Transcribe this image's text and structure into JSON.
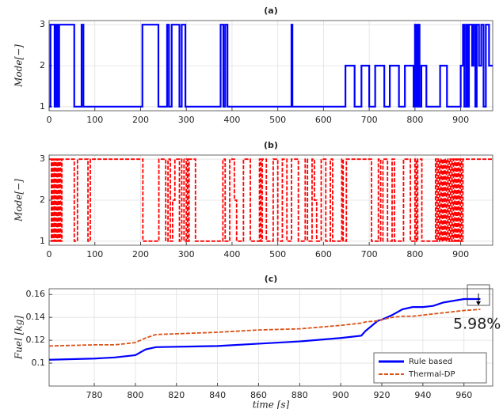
{
  "chart_data": [
    {
      "type": "line",
      "title": "(a)",
      "y_label": "Mode[−]",
      "drawstyle": "steps-post",
      "grid": true,
      "color": "#0000ff",
      "linestyle": "solid",
      "xlim": [
        0,
        970
      ],
      "ylim": [
        0.9,
        3.1
      ],
      "xticks": [
        0,
        100,
        200,
        300,
        400,
        500,
        600,
        700,
        800,
        900
      ],
      "yticks": [
        1,
        2,
        3
      ],
      "x": [
        0,
        3,
        12,
        14,
        16,
        18,
        20,
        22,
        55,
        71,
        75,
        204,
        239,
        258,
        262,
        268,
        285,
        290,
        298,
        375,
        381,
        385,
        390,
        530,
        532,
        648,
        668,
        683,
        700,
        713,
        733,
        745,
        765,
        778,
        797,
        800,
        802,
        804,
        806,
        808,
        810,
        814,
        825,
        855,
        870,
        900,
        905,
        908,
        912,
        915,
        918,
        925,
        928,
        932,
        935,
        940,
        945,
        950,
        955,
        962,
        970
      ],
      "values": [
        1,
        3,
        1,
        3,
        1,
        3,
        1,
        3,
        1,
        3,
        1,
        3,
        1,
        3,
        1,
        3,
        1,
        3,
        1,
        3,
        1,
        3,
        1,
        3,
        1,
        2,
        1,
        2,
        1,
        2,
        1,
        2,
        1,
        2,
        1,
        3,
        1,
        3,
        1,
        3,
        1,
        2,
        1,
        2,
        1,
        2,
        3,
        1,
        3,
        1,
        3,
        2,
        3,
        1,
        3,
        2,
        3,
        1,
        3,
        2,
        2
      ]
    },
    {
      "type": "line",
      "title": "(b)",
      "y_label": "Mode[−]",
      "drawstyle": "steps-post",
      "grid": true,
      "color": "#ff0000",
      "linestyle": "dashed",
      "xlim": [
        0,
        970
      ],
      "ylim": [
        0.9,
        3.1
      ],
      "xticks": [
        0,
        100,
        200,
        300,
        400,
        500,
        600,
        700,
        800,
        900
      ],
      "yticks": [
        1,
        2,
        3
      ],
      "x": [
        0,
        5,
        8,
        10,
        12,
        15,
        18,
        20,
        22,
        25,
        28,
        55,
        62,
        85,
        90,
        205,
        240,
        255,
        260,
        265,
        270,
        275,
        285,
        290,
        295,
        300,
        303,
        306,
        320,
        380,
        385,
        395,
        405,
        410,
        425,
        440,
        460,
        463,
        466,
        475,
        490,
        500,
        510,
        520,
        530,
        545,
        560,
        565,
        575,
        580,
        585,
        595,
        605,
        615,
        620,
        640,
        643,
        650,
        705,
        720,
        725,
        730,
        740,
        750,
        755,
        775,
        790,
        800,
        803,
        806,
        815,
        845,
        848,
        851,
        854,
        857,
        860,
        863,
        866,
        869,
        872,
        875,
        878,
        881,
        884,
        887,
        890,
        893,
        896,
        899,
        902,
        905,
        970
      ],
      "values": [
        3,
        1,
        3,
        1,
        3,
        1,
        3,
        1,
        3,
        1,
        3,
        1,
        3,
        1,
        3,
        1,
        3,
        1,
        3,
        1,
        2,
        3,
        1,
        3,
        1,
        3,
        1,
        3,
        1,
        3,
        1,
        3,
        2,
        1,
        3,
        1,
        3,
        1,
        3,
        1,
        3,
        1,
        3,
        1,
        3,
        1,
        3,
        1,
        3,
        2,
        1,
        3,
        1,
        3,
        1,
        3,
        1,
        3,
        1,
        3,
        1,
        3,
        1,
        3,
        1,
        3,
        1,
        3,
        1,
        3,
        1,
        3,
        1,
        3,
        1,
        3,
        1,
        3,
        1,
        3,
        1,
        3,
        1,
        3,
        1,
        3,
        1,
        3,
        1,
        3,
        1,
        3,
        3
      ]
    },
    {
      "type": "line",
      "title": "(c)",
      "y_label": "Fuel [kg]",
      "x_label": "time [s]",
      "drawstyle": "default",
      "grid": true,
      "legend": "lower right",
      "annotation": "5.98%",
      "xlim": [
        758,
        974
      ],
      "ylim": [
        0.08,
        0.165
      ],
      "xticks": [
        780,
        800,
        820,
        840,
        860,
        880,
        900,
        920,
        940,
        960
      ],
      "yticks": [
        0.1,
        0.12,
        0.14,
        0.16
      ],
      "x": [
        758,
        780,
        790,
        800,
        805,
        810,
        840,
        860,
        880,
        900,
        910,
        912,
        918,
        920,
        925,
        930,
        935,
        940,
        945,
        950,
        960,
        968
      ],
      "series": [
        {
          "name": "Rule based",
          "color": "#0000ff",
          "linestyle": "solid",
          "values": [
            0.103,
            0.104,
            0.105,
            0.107,
            0.112,
            0.114,
            0.115,
            0.117,
            0.119,
            0.122,
            0.124,
            0.128,
            0.137,
            0.138,
            0.142,
            0.147,
            0.149,
            0.149,
            0.15,
            0.153,
            0.156,
            0.156
          ]
        },
        {
          "name": "Thermal-DP",
          "color": "#d95319",
          "linestyle": "dashed",
          "values": [
            0.115,
            0.116,
            0.116,
            0.118,
            0.122,
            0.125,
            0.127,
            0.129,
            0.13,
            0.133,
            0.135,
            0.136,
            0.137,
            0.138,
            0.14,
            0.141,
            0.141,
            0.142,
            0.143,
            0.144,
            0.146,
            0.147
          ]
        }
      ]
    }
  ]
}
